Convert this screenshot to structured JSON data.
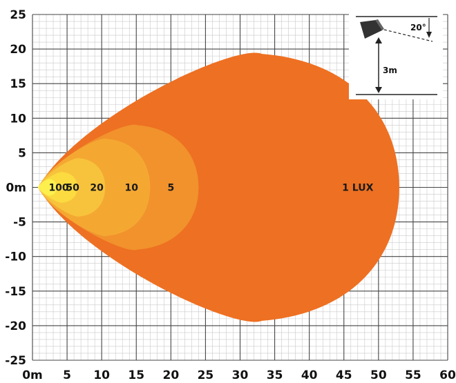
{
  "chart_data": {
    "type": "isolux-diagram",
    "x_axis": {
      "range": [
        0,
        60
      ],
      "ticks": [
        "0m",
        "5",
        "10",
        "15",
        "20",
        "25",
        "30",
        "35",
        "40",
        "45",
        "50",
        "55",
        "60"
      ]
    },
    "y_axis": {
      "range": [
        -25,
        25
      ],
      "ticks": [
        "25",
        "20",
        "15",
        "10",
        "5",
        "0m",
        "-5",
        "-10",
        "-15",
        "-20",
        "-25"
      ]
    },
    "grid": true,
    "zones": [
      {
        "label": "1 LUX",
        "lux": 1,
        "reach_m": 53,
        "half_width_m": 19.3,
        "color": "#EE7022"
      },
      {
        "label": "5",
        "lux": 5,
        "reach_m": 24,
        "half_width_m": 9,
        "color": "#F1922C"
      },
      {
        "label": "10",
        "lux": 10,
        "reach_m": 17,
        "half_width_m": 7,
        "color": "#F4A832"
      },
      {
        "label": "20",
        "lux": 20,
        "reach_m": 10.5,
        "half_width_m": 4.2,
        "color": "#F8C33C"
      },
      {
        "label": "50",
        "lux": 50,
        "reach_m": 6.5,
        "half_width_m": 2.2,
        "color": "#FBDB40"
      },
      {
        "label": "100",
        "lux": 100,
        "reach_m": 3.5,
        "half_width_m": 1.2,
        "color": "#FDF04E"
      }
    ],
    "inset": {
      "angle_label": "20°",
      "height_label": "3m"
    }
  }
}
